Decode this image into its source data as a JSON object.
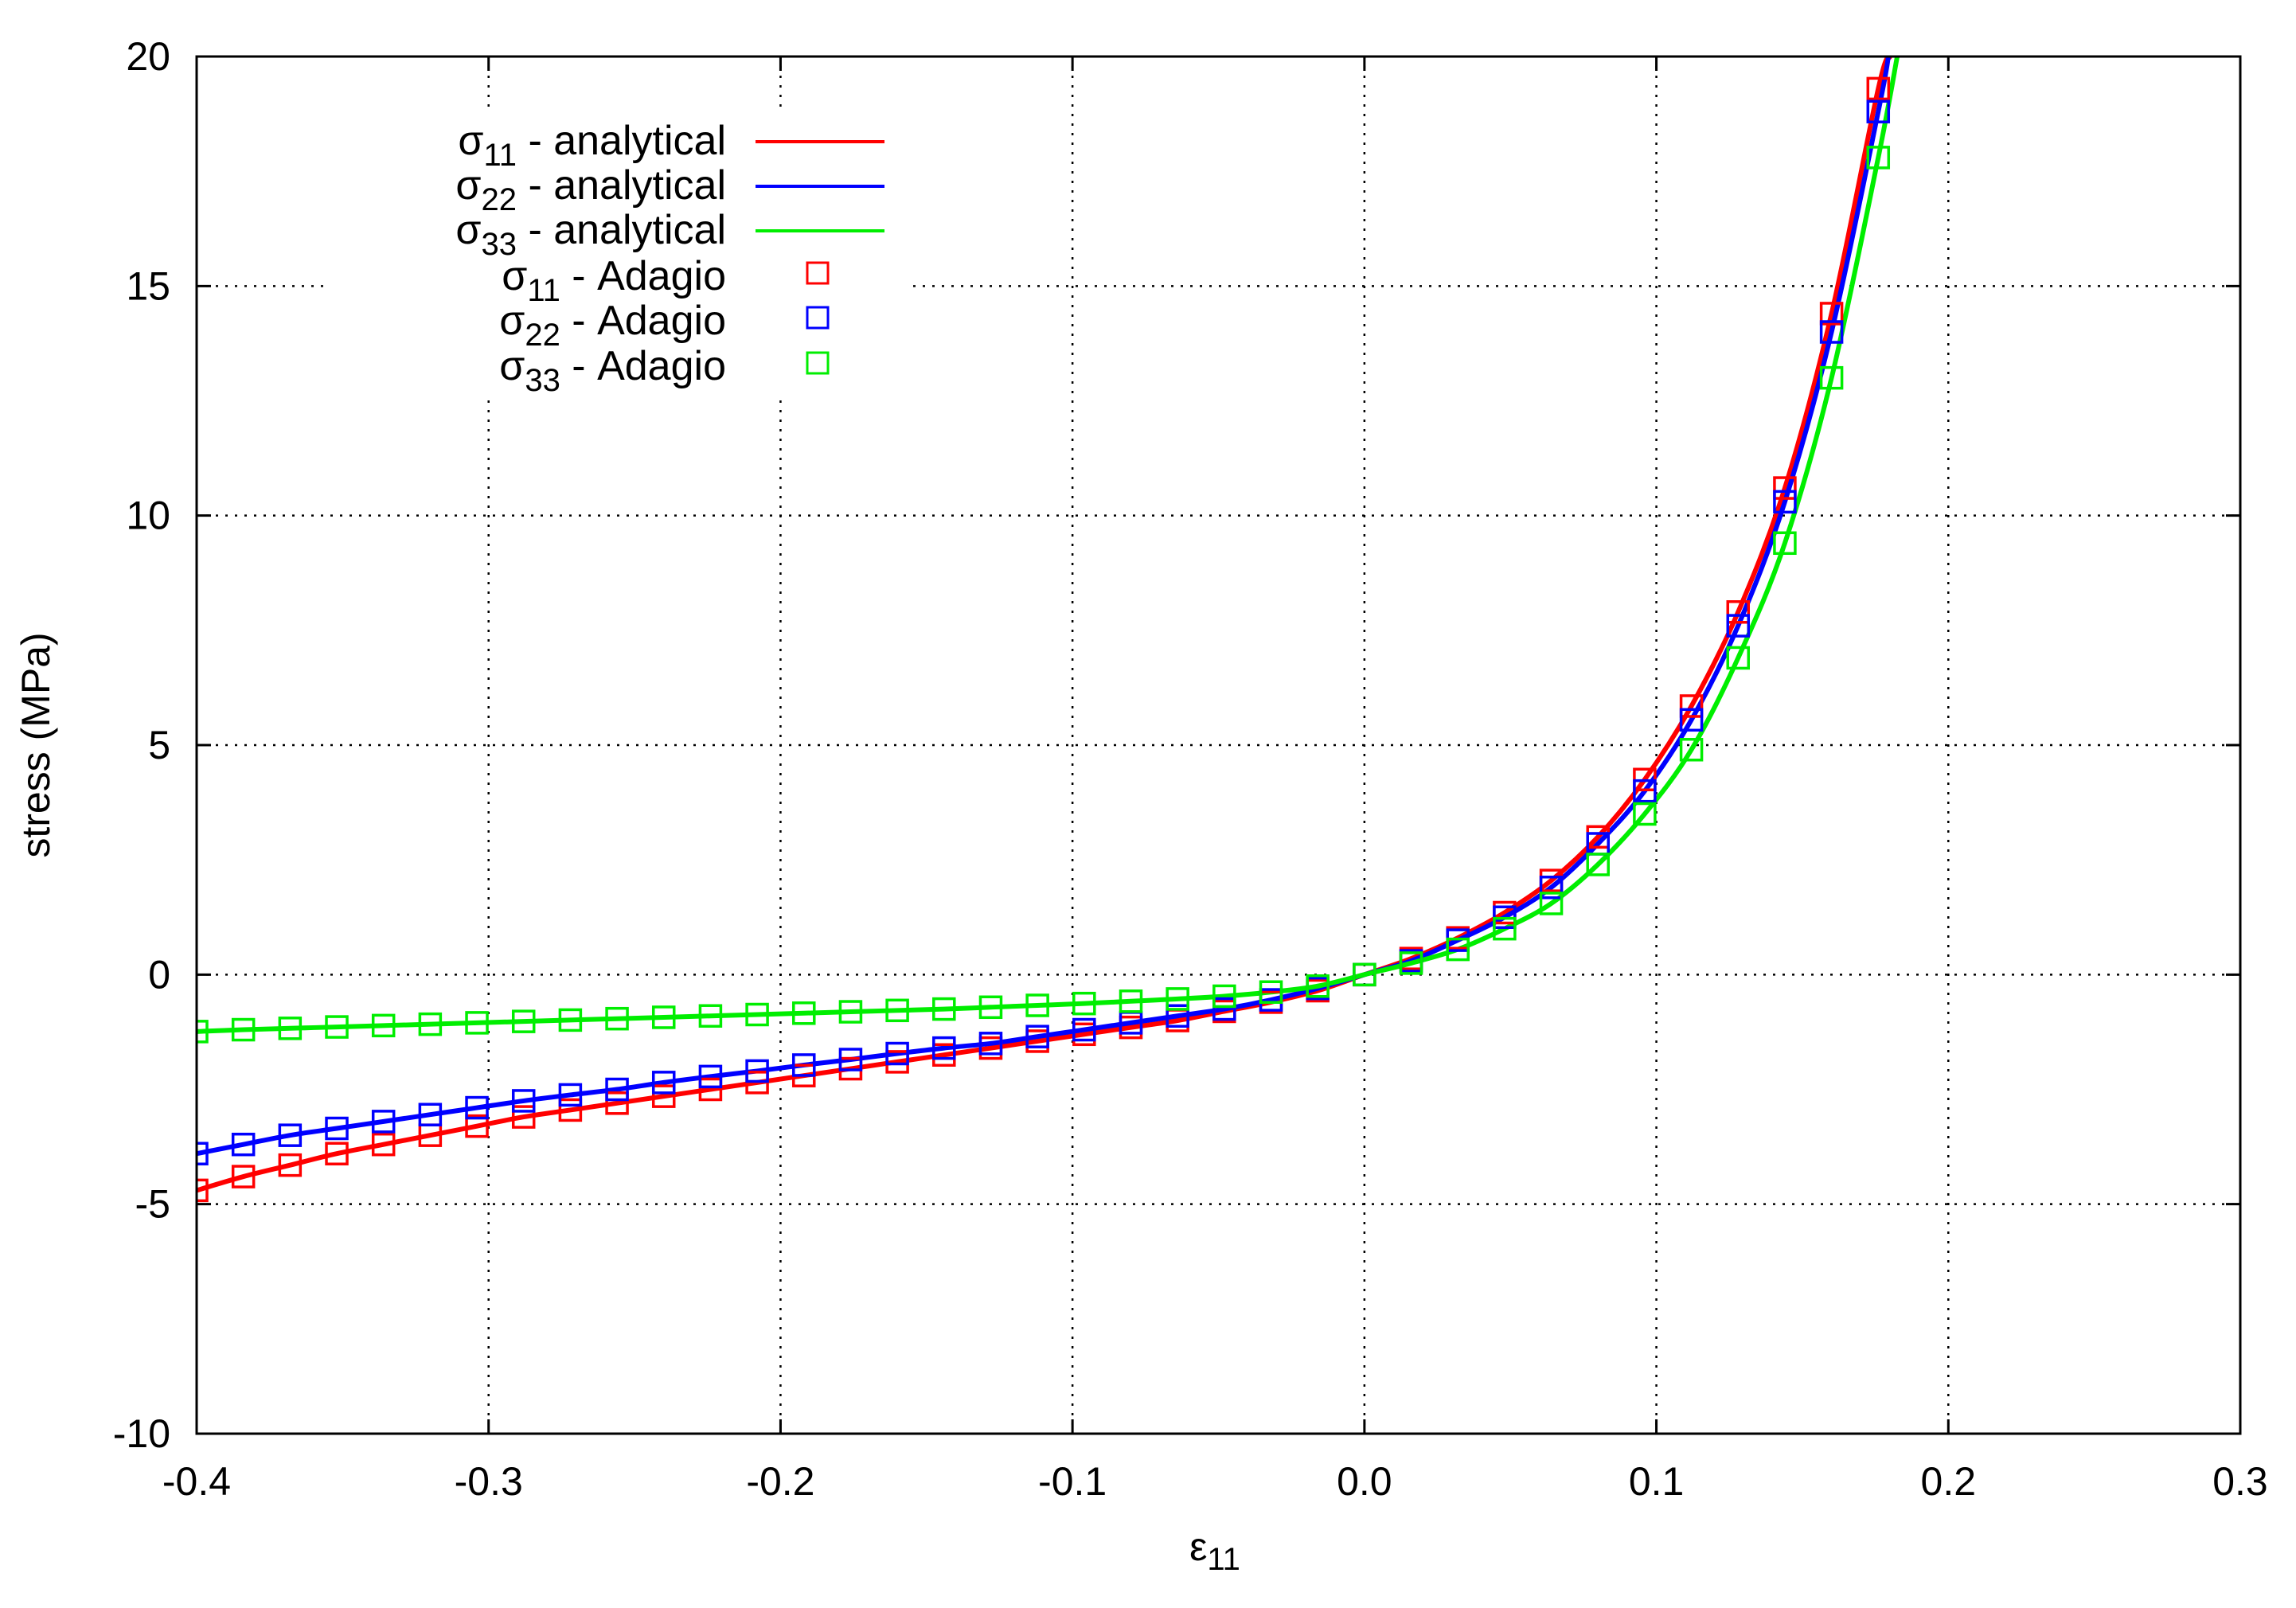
{
  "chart_data": {
    "type": "line",
    "title": "",
    "xlabel": "ε",
    "xlabel_sub": "11",
    "ylabel": "stress (MPa)",
    "xlim": [
      -0.4,
      0.3
    ],
    "ylim": [
      -10,
      20
    ],
    "xticks": [
      -0.4,
      -0.3,
      -0.2,
      -0.1,
      0.0,
      0.1,
      0.2,
      0.3
    ],
    "xtick_labels": [
      "-0.4",
      "-0.3",
      "-0.2",
      "-0.1",
      "0.0",
      "0.1",
      "0.2",
      "0.3"
    ],
    "yticks": [
      -10,
      -5,
      0,
      5,
      10,
      15,
      20
    ],
    "ytick_labels": [
      "-10",
      "-5",
      "0",
      "5",
      "10",
      "15",
      "20"
    ],
    "grid": true,
    "legend_position": "top-left",
    "x": [
      -0.4,
      -0.384,
      -0.368,
      -0.352,
      -0.336,
      -0.32,
      -0.304,
      -0.288,
      -0.272,
      -0.256,
      -0.24,
      -0.224,
      -0.208,
      -0.192,
      -0.176,
      -0.16,
      -0.144,
      -0.128,
      -0.112,
      -0.096,
      -0.08,
      -0.064,
      -0.048,
      -0.032,
      -0.016,
      0,
      0.016,
      0.032,
      0.048,
      0.064,
      0.08,
      0.096,
      0.112,
      0.128,
      0.144,
      0.16,
      0.176
    ],
    "series": [
      {
        "name": "σ11 - analytical",
        "sym": "σ",
        "sub": "11",
        "suffix": " - analytical",
        "kind": "line",
        "color": "#ff0000",
        "ref": 0,
        "curve_end": [
          0.18,
          20
        ]
      },
      {
        "name": "σ22 - analytical",
        "sym": "σ",
        "sub": "22",
        "suffix": " - analytical",
        "kind": "line",
        "color": "#0000ff",
        "ref": 1,
        "curve_end": [
          0.1795,
          20
        ]
      },
      {
        "name": "σ33 - analytical",
        "sym": "σ",
        "sub": "33",
        "suffix": " - analytical",
        "kind": "line",
        "color": "#00ee00",
        "ref": 2,
        "curve_end": [
          0.1825,
          20
        ]
      },
      {
        "name": "σ11 - Adagio",
        "sym": "σ",
        "sub": "11",
        "suffix": " - Adagio",
        "kind": "marker",
        "color": "#ff0000",
        "values": [
          -4.7,
          -4.4,
          -4.15,
          -3.9,
          -3.7,
          -3.5,
          -3.3,
          -3.1,
          -2.95,
          -2.8,
          -2.65,
          -2.5,
          -2.35,
          -2.2,
          -2.05,
          -1.9,
          -1.75,
          -1.6,
          -1.45,
          -1.3,
          -1.15,
          -1.0,
          -0.8,
          -0.6,
          -0.35,
          0,
          0.35,
          0.8,
          1.35,
          2.05,
          3.0,
          4.25,
          5.85,
          7.9,
          10.6,
          14.4,
          19.3
        ]
      },
      {
        "name": "σ22 - Adagio",
        "sym": "σ",
        "sub": "22",
        "suffix": " - Adagio",
        "kind": "marker",
        "color": "#0000ff",
        "values": [
          -3.9,
          -3.7,
          -3.5,
          -3.35,
          -3.2,
          -3.05,
          -2.9,
          -2.75,
          -2.62,
          -2.5,
          -2.35,
          -2.22,
          -2.1,
          -1.97,
          -1.85,
          -1.72,
          -1.6,
          -1.5,
          -1.35,
          -1.2,
          -1.05,
          -0.9,
          -0.75,
          -0.55,
          -0.3,
          0,
          0.3,
          0.75,
          1.25,
          1.9,
          2.85,
          4.0,
          5.55,
          7.6,
          10.3,
          14.0,
          18.8
        ]
      },
      {
        "name": "σ33 - Adagio",
        "sym": "σ",
        "sub": "33",
        "suffix": " - Adagio",
        "kind": "marker",
        "color": "#00ee00",
        "values": [
          -1.24,
          -1.2,
          -1.17,
          -1.14,
          -1.11,
          -1.08,
          -1.05,
          -1.02,
          -0.99,
          -0.96,
          -0.93,
          -0.9,
          -0.87,
          -0.84,
          -0.81,
          -0.78,
          -0.75,
          -0.71,
          -0.67,
          -0.63,
          -0.58,
          -0.53,
          -0.47,
          -0.38,
          -0.25,
          0,
          0.25,
          0.55,
          1.0,
          1.55,
          2.4,
          3.5,
          4.9,
          6.9,
          9.4,
          13.0,
          17.8
        ]
      }
    ]
  }
}
